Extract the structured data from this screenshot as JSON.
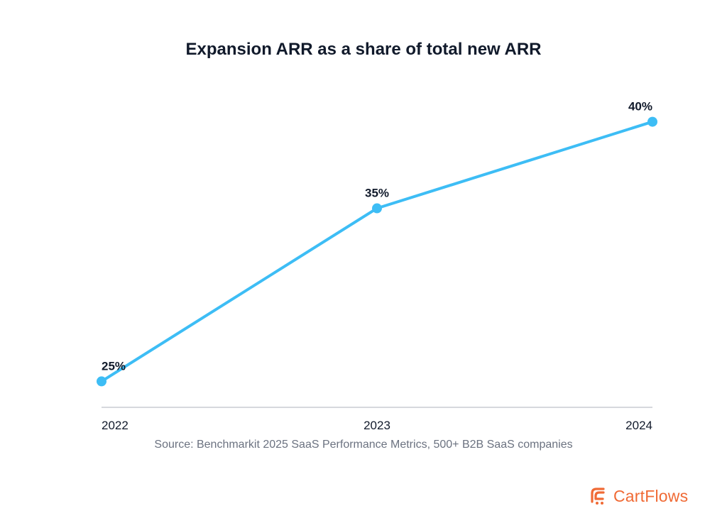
{
  "colors": {
    "line": "#3dbdf5",
    "axis": "#c8ccd2",
    "text": "#111a2b",
    "muted": "#6b7280",
    "brand": "#f06a35"
  },
  "chart_data": {
    "type": "line",
    "title": "Expansion ARR as a share of total new ARR",
    "xlabel": "",
    "ylabel": "",
    "categories": [
      "2022",
      "2023",
      "2024"
    ],
    "series": [
      {
        "values": [
          25,
          35,
          40
        ],
        "labels": [
          "25%",
          "35%",
          "40%"
        ]
      }
    ],
    "ylim": [
      23.5,
      41.5
    ],
    "grid": false,
    "legend": "none"
  },
  "source": "Source: Benchmarkit 2025 SaaS Performance Metrics, 500+ B2B SaaS companies",
  "brand": {
    "name": "CartFlows",
    "icon": "cartflows-logo-icon"
  }
}
